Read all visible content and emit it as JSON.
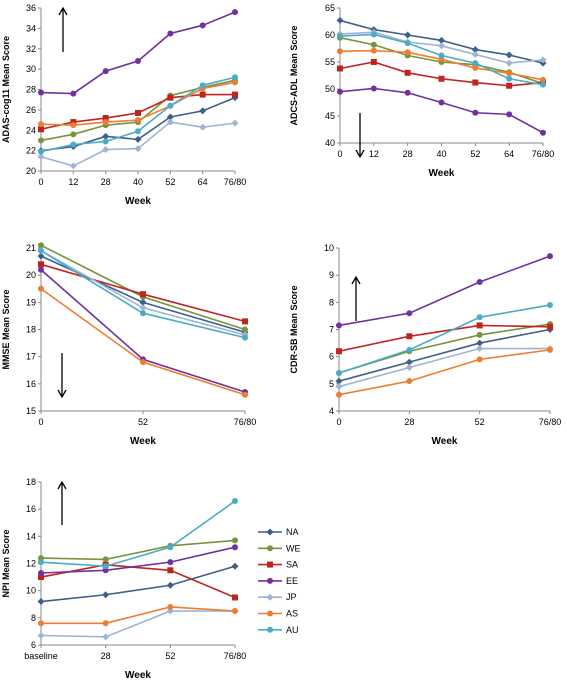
{
  "legend": {
    "placement": "right",
    "entries": [
      {
        "name": "NA",
        "color": "#3d5f8a",
        "marker": "diamond"
      },
      {
        "name": "WE",
        "color": "#77933c",
        "marker": "circle"
      },
      {
        "name": "SA",
        "color": "#c0241e",
        "marker": "square"
      },
      {
        "name": "EE",
        "color": "#7030a0",
        "marker": "circle"
      },
      {
        "name": "JP",
        "color": "#9eb4d6",
        "marker": "diamond"
      },
      {
        "name": "AS",
        "color": "#ed7d31",
        "marker": "circle"
      },
      {
        "name": "AU",
        "color": "#4bacc6",
        "marker": "circle"
      }
    ]
  },
  "chart_data": [
    {
      "type": "line",
      "xlabel": "Week",
      "ylabel": "ADAS-cog11 Mean Score",
      "categories": [
        "0",
        "12",
        "28",
        "40",
        "52",
        "64",
        "76/80"
      ],
      "ylim": [
        20,
        36
      ],
      "yticks": [
        20,
        22,
        24,
        26,
        28,
        30,
        32,
        34,
        36
      ],
      "arrow": "up",
      "series": [
        {
          "name": "NA",
          "values": [
            22.0,
            22.4,
            23.4,
            23.1,
            25.3,
            25.9,
            27.2
          ]
        },
        {
          "name": "WE",
          "values": [
            23.0,
            23.6,
            24.5,
            24.8,
            27.4,
            28.2,
            28.9
          ]
        },
        {
          "name": "SA",
          "values": [
            24.1,
            24.8,
            25.2,
            25.7,
            27.2,
            27.5,
            27.5
          ]
        },
        {
          "name": "EE",
          "values": [
            27.7,
            27.6,
            29.8,
            30.8,
            33.5,
            34.3,
            35.6
          ]
        },
        {
          "name": "JP",
          "values": [
            21.4,
            20.5,
            22.1,
            22.2,
            24.8,
            24.3,
            24.7
          ]
        },
        {
          "name": "AS",
          "values": [
            24.6,
            24.5,
            24.8,
            25.0,
            26.4,
            28.1,
            28.7
          ]
        },
        {
          "name": "AU",
          "values": [
            21.9,
            22.6,
            22.9,
            23.9,
            26.4,
            28.4,
            29.2
          ]
        }
      ]
    },
    {
      "type": "line",
      "xlabel": "Week",
      "ylabel": "ADCS-ADL Mean Score",
      "categories": [
        "0",
        "12",
        "28",
        "40",
        "52",
        "64",
        "76/80"
      ],
      "ylim": [
        40,
        65
      ],
      "yticks": [
        40,
        45,
        50,
        55,
        60,
        65
      ],
      "arrow": "down",
      "series": [
        {
          "name": "NA",
          "values": [
            62.7,
            61.0,
            60.0,
            59.0,
            57.3,
            56.3,
            54.8
          ]
        },
        {
          "name": "WE",
          "values": [
            59.5,
            58.2,
            56.2,
            55.0,
            54.5,
            53.1,
            51.0
          ]
        },
        {
          "name": "SA",
          "values": [
            53.8,
            55.0,
            53.0,
            51.9,
            51.2,
            50.6,
            51.2
          ]
        },
        {
          "name": "EE",
          "values": [
            49.5,
            50.1,
            49.3,
            47.5,
            45.6,
            45.3,
            41.9
          ]
        },
        {
          "name": "JP",
          "values": [
            60.2,
            60.5,
            58.7,
            58.0,
            56.4,
            54.8,
            55.4
          ]
        },
        {
          "name": "AS",
          "values": [
            57.0,
            57.1,
            56.8,
            55.5,
            53.9,
            52.9,
            51.7
          ]
        },
        {
          "name": "AU",
          "values": [
            59.8,
            60.1,
            58.5,
            56.2,
            54.8,
            51.9,
            50.8
          ]
        }
      ]
    },
    {
      "type": "line",
      "xlabel": "Week",
      "ylabel": "MMSE Mean Score",
      "categories": [
        "0",
        "52",
        "76/80"
      ],
      "ylim": [
        15,
        21
      ],
      "yticks": [
        15,
        16,
        17,
        18,
        19,
        20,
        21
      ],
      "arrow": "down",
      "series": [
        {
          "name": "NA",
          "values": [
            20.7,
            19.0,
            17.9
          ]
        },
        {
          "name": "WE",
          "values": [
            21.1,
            19.2,
            18.0
          ]
        },
        {
          "name": "SA",
          "values": [
            20.4,
            19.3,
            18.3
          ]
        },
        {
          "name": "EE",
          "values": [
            20.2,
            16.9,
            15.7
          ]
        },
        {
          "name": "JP",
          "values": [
            20.9,
            18.8,
            17.8
          ]
        },
        {
          "name": "AS",
          "values": [
            19.5,
            16.8,
            15.6
          ]
        },
        {
          "name": "AU",
          "values": [
            20.9,
            18.6,
            17.7
          ]
        }
      ]
    },
    {
      "type": "line",
      "xlabel": "Week",
      "ylabel": "CDR-SB Mean Score",
      "categories": [
        "0",
        "28",
        "52",
        "76/80"
      ],
      "ylim": [
        4,
        10
      ],
      "yticks": [
        4,
        5,
        6,
        7,
        8,
        9,
        10
      ],
      "arrow": "up",
      "series": [
        {
          "name": "NA",
          "values": [
            5.1,
            5.8,
            6.5,
            7.0
          ]
        },
        {
          "name": "WE",
          "values": [
            5.4,
            6.2,
            6.8,
            7.2
          ]
        },
        {
          "name": "SA",
          "values": [
            6.2,
            6.75,
            7.15,
            7.1
          ]
        },
        {
          "name": "EE",
          "values": [
            7.15,
            7.6,
            8.75,
            9.7
          ]
        },
        {
          "name": "JP",
          "values": [
            4.9,
            5.6,
            6.3,
            6.3
          ]
        },
        {
          "name": "AS",
          "values": [
            4.6,
            5.1,
            5.9,
            6.25
          ]
        },
        {
          "name": "AU",
          "values": [
            5.4,
            6.25,
            7.45,
            7.9
          ]
        }
      ]
    },
    {
      "type": "line",
      "xlabel": "Week",
      "ylabel": "NPI Mean Score",
      "categories": [
        "baseline",
        "28",
        "52",
        "76/80"
      ],
      "ylim": [
        6,
        18
      ],
      "yticks": [
        6,
        8,
        10,
        12,
        14,
        16,
        18
      ],
      "arrow": "up",
      "series": [
        {
          "name": "NA",
          "values": [
            9.2,
            9.7,
            10.4,
            11.8
          ]
        },
        {
          "name": "WE",
          "values": [
            12.4,
            12.3,
            13.3,
            13.7
          ]
        },
        {
          "name": "SA",
          "values": [
            11.0,
            11.9,
            11.5,
            9.5
          ]
        },
        {
          "name": "EE",
          "values": [
            11.3,
            11.5,
            12.1,
            13.2
          ]
        },
        {
          "name": "JP",
          "values": [
            6.7,
            6.6,
            8.5,
            8.5
          ]
        },
        {
          "name": "AS",
          "values": [
            7.6,
            7.6,
            8.8,
            8.5
          ]
        },
        {
          "name": "AU",
          "values": [
            12.1,
            11.8,
            13.2,
            16.6
          ]
        }
      ]
    }
  ]
}
